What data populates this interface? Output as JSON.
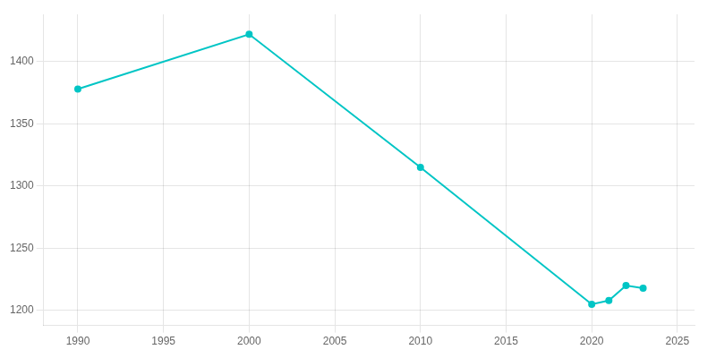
{
  "chart_data": {
    "type": "line",
    "x": [
      1990,
      2000,
      2010,
      2020,
      2021,
      2022,
      2023
    ],
    "values": [
      1378,
      1422,
      1315,
      1205,
      1208,
      1220,
      1218
    ],
    "color": "#00C5C5",
    "marker": "circle",
    "xlim": [
      1988,
      2026
    ],
    "ylim": [
      1188,
      1438
    ],
    "xticks": [
      1990,
      1995,
      2000,
      2005,
      2010,
      2015,
      2020,
      2025
    ],
    "yticks": [
      1200,
      1250,
      1300,
      1350,
      1400
    ],
    "grid": true
  }
}
